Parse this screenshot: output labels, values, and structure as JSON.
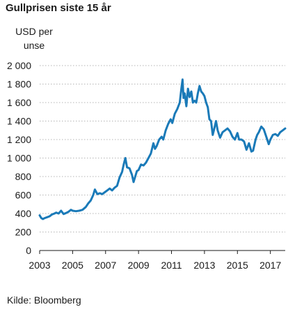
{
  "chart_data": {
    "type": "line",
    "title": "Gullprisen siste 15 år",
    "ylabel": "USD per unse",
    "xlabel": "",
    "source": "Kilde: Bloomberg",
    "ylim": [
      0,
      2000
    ],
    "xlim": [
      2003,
      2017.9
    ],
    "yticks": [
      0,
      200,
      400,
      600,
      800,
      1000,
      1200,
      1400,
      1600,
      1800,
      2000
    ],
    "ytick_labels": [
      "0",
      "200",
      "400",
      "600",
      "800",
      "1 000",
      "1 200",
      "1 400",
      "1 600",
      "1 800",
      "2 000"
    ],
    "xticks": [
      2003,
      2005,
      2007,
      2009,
      2011,
      2013,
      2015,
      2017
    ],
    "xtick_labels": [
      "2003",
      "2005",
      "2007",
      "2009",
      "2011",
      "2013",
      "2015",
      "2017"
    ],
    "grid": "horizontal",
    "line_color": "#1a7ab8",
    "series": [
      {
        "x": [
          2003.0,
          2003.1,
          2003.2,
          2003.3,
          2003.45,
          2003.6,
          2003.75,
          2003.9,
          2004.0,
          2004.15,
          2004.3,
          2004.45,
          2004.6,
          2004.75,
          2004.9,
          2005.0,
          2005.2,
          2005.4,
          2005.6,
          2005.8,
          2005.95,
          2006.1,
          2006.25,
          2006.35,
          2006.5,
          2006.65,
          2006.8,
          2006.95,
          2007.1,
          2007.25,
          2007.4,
          2007.55,
          2007.7,
          2007.85,
          2008.0,
          2008.1,
          2008.2,
          2008.3,
          2008.45,
          2008.6,
          2008.7,
          2008.8,
          2008.9,
          2009.0,
          2009.15,
          2009.3,
          2009.45,
          2009.6,
          2009.75,
          2009.9,
          2010.0,
          2010.1,
          2010.25,
          2010.4,
          2010.5,
          2010.65,
          2010.8,
          2010.95,
          2011.05,
          2011.2,
          2011.35,
          2011.5,
          2011.6,
          2011.67,
          2011.73,
          2011.8,
          2011.9,
          2012.0,
          2012.1,
          2012.2,
          2012.3,
          2012.4,
          2012.5,
          2012.6,
          2012.7,
          2012.8,
          2012.9,
          2013.0,
          2013.1,
          2013.2,
          2013.3,
          2013.4,
          2013.5,
          2013.6,
          2013.7,
          2013.8,
          2013.95,
          2014.1,
          2014.25,
          2014.4,
          2014.55,
          2014.7,
          2014.85,
          2015.0,
          2015.1,
          2015.25,
          2015.4,
          2015.55,
          2015.7,
          2015.85,
          2015.95,
          2016.1,
          2016.2,
          2016.3,
          2016.45,
          2016.6,
          2016.75,
          2016.9,
          2017.0,
          2017.15,
          2017.3,
          2017.45,
          2017.6,
          2017.75,
          2017.9
        ],
        "y": [
          380,
          350,
          340,
          350,
          360,
          370,
          390,
          400,
          410,
          400,
          430,
          395,
          405,
          420,
          440,
          430,
          425,
          430,
          440,
          470,
          510,
          540,
          600,
          660,
          610,
          620,
          610,
          630,
          650,
          670,
          650,
          680,
          700,
          790,
          850,
          930,
          1000,
          900,
          890,
          820,
          740,
          800,
          860,
          870,
          930,
          920,
          950,
          1000,
          1050,
          1160,
          1100,
          1130,
          1200,
          1230,
          1200,
          1300,
          1370,
          1420,
          1380,
          1480,
          1530,
          1600,
          1750,
          1850,
          1650,
          1700,
          1560,
          1750,
          1660,
          1720,
          1600,
          1620,
          1600,
          1700,
          1780,
          1720,
          1700,
          1670,
          1600,
          1550,
          1420,
          1400,
          1250,
          1320,
          1400,
          1300,
          1220,
          1280,
          1300,
          1320,
          1290,
          1230,
          1200,
          1270,
          1200,
          1200,
          1180,
          1090,
          1160,
          1070,
          1080,
          1200,
          1250,
          1280,
          1340,
          1310,
          1230,
          1150,
          1200,
          1250,
          1260,
          1240,
          1280,
          1300,
          1320
        ]
      }
    ]
  }
}
